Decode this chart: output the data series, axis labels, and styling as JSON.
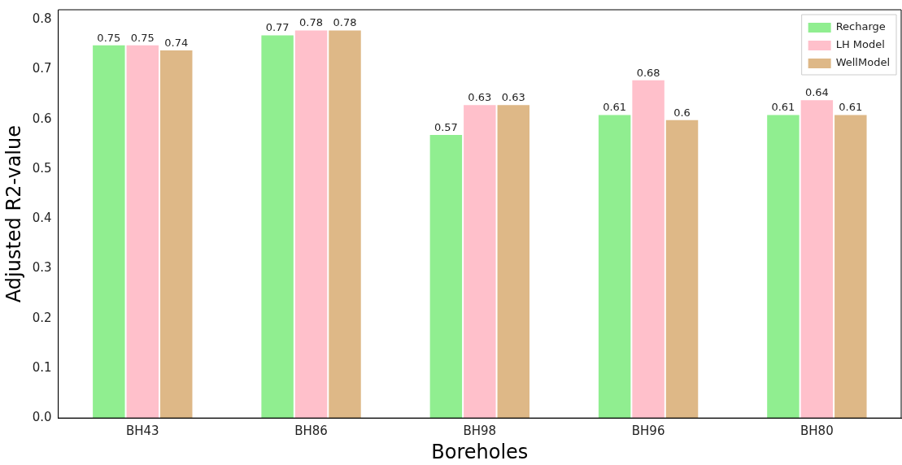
{
  "chart_data": {
    "type": "bar",
    "xlabel": "Boreholes",
    "ylabel": "Adjusted R2-value",
    "categories": [
      "BH43",
      "BH86",
      "BH98",
      "BH96",
      "BH80"
    ],
    "series": [
      {
        "name": "Recharge",
        "color": "#90ee90",
        "values": [
          0.75,
          0.77,
          0.57,
          0.61,
          0.61
        ]
      },
      {
        "name": "LH Model",
        "color": "#ffc0cb",
        "values": [
          0.75,
          0.78,
          0.63,
          0.68,
          0.64
        ]
      },
      {
        "name": "WellModel",
        "color": "#deb887",
        "values": [
          0.74,
          0.78,
          0.63,
          0.6,
          0.61
        ]
      }
    ],
    "ylim": [
      0,
      0.82
    ],
    "yticks": [
      {
        "value": 0,
        "label": "0.0"
      },
      0.1,
      0.2,
      0.3,
      0.4,
      0.5,
      0.6,
      0.7,
      0.8
    ],
    "grid": false,
    "legend": "top right",
    "data_labels": true
  }
}
